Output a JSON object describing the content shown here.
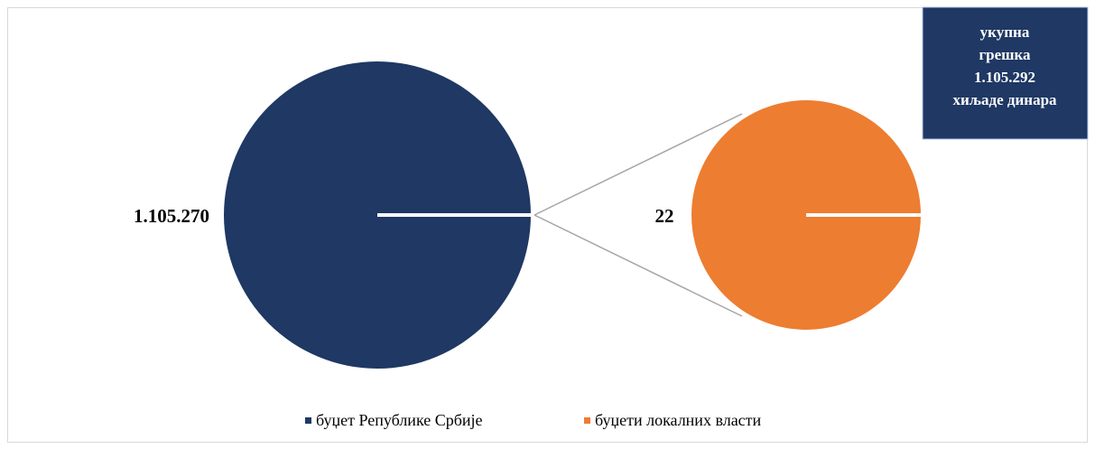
{
  "chart_data": {
    "type": "pie",
    "categories": [
      "буџет Републике Србије",
      "буџети локалних власти"
    ],
    "values": [
      1105270,
      22
    ],
    "value_labels": [
      "1.105.270",
      "22"
    ],
    "colors": [
      "#1f3864",
      "#ed7d31"
    ],
    "annotation": [
      "укупна",
      "грешка",
      "1.105.292",
      "хиљаде динара"
    ]
  }
}
